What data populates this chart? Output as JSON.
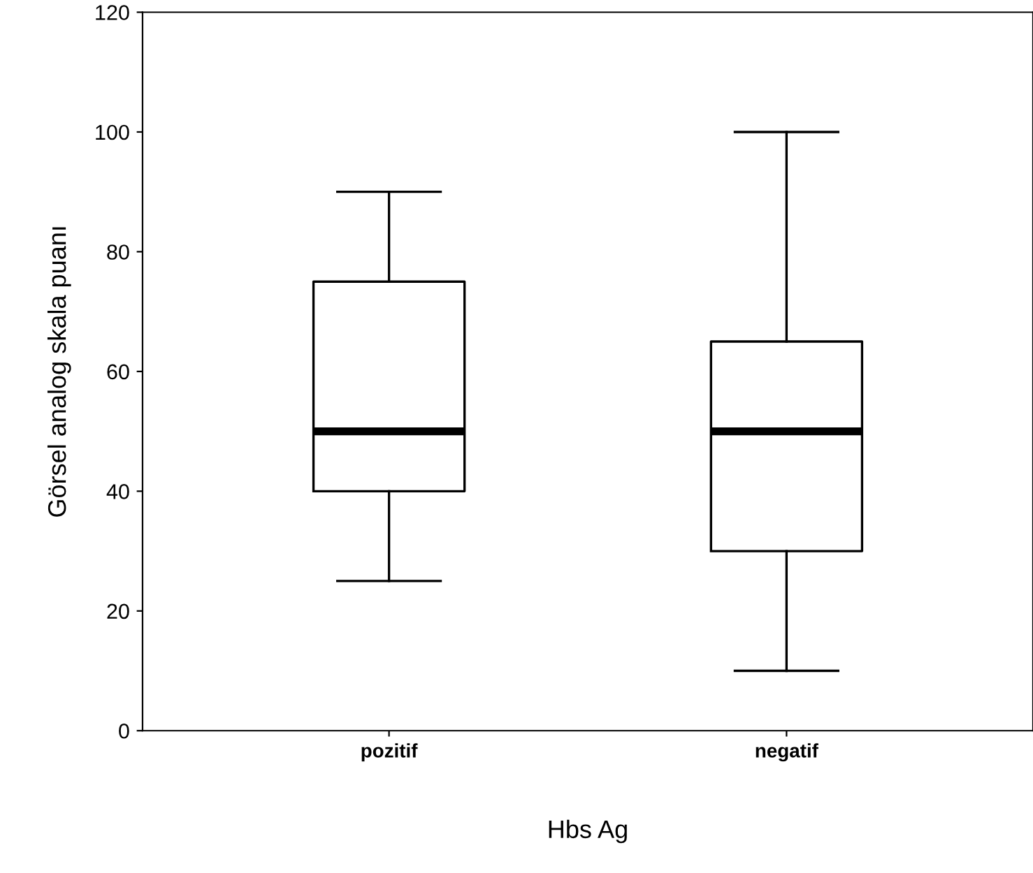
{
  "chart_data": {
    "type": "box",
    "xlabel": "Hbs Ag",
    "ylabel": "Görsel analog skala puanı",
    "categories": [
      "pozitif",
      "negatif"
    ],
    "boxes": [
      {
        "low": 25,
        "q1": 40,
        "median": 50,
        "q3": 75,
        "high": 90
      },
      {
        "low": 10,
        "q1": 30,
        "median": 50,
        "q3": 65,
        "high": 100
      }
    ],
    "ylim": [
      0,
      120
    ],
    "yticks": [
      0,
      20,
      40,
      60,
      80,
      100,
      120
    ],
    "grid": false,
    "legend": false
  }
}
